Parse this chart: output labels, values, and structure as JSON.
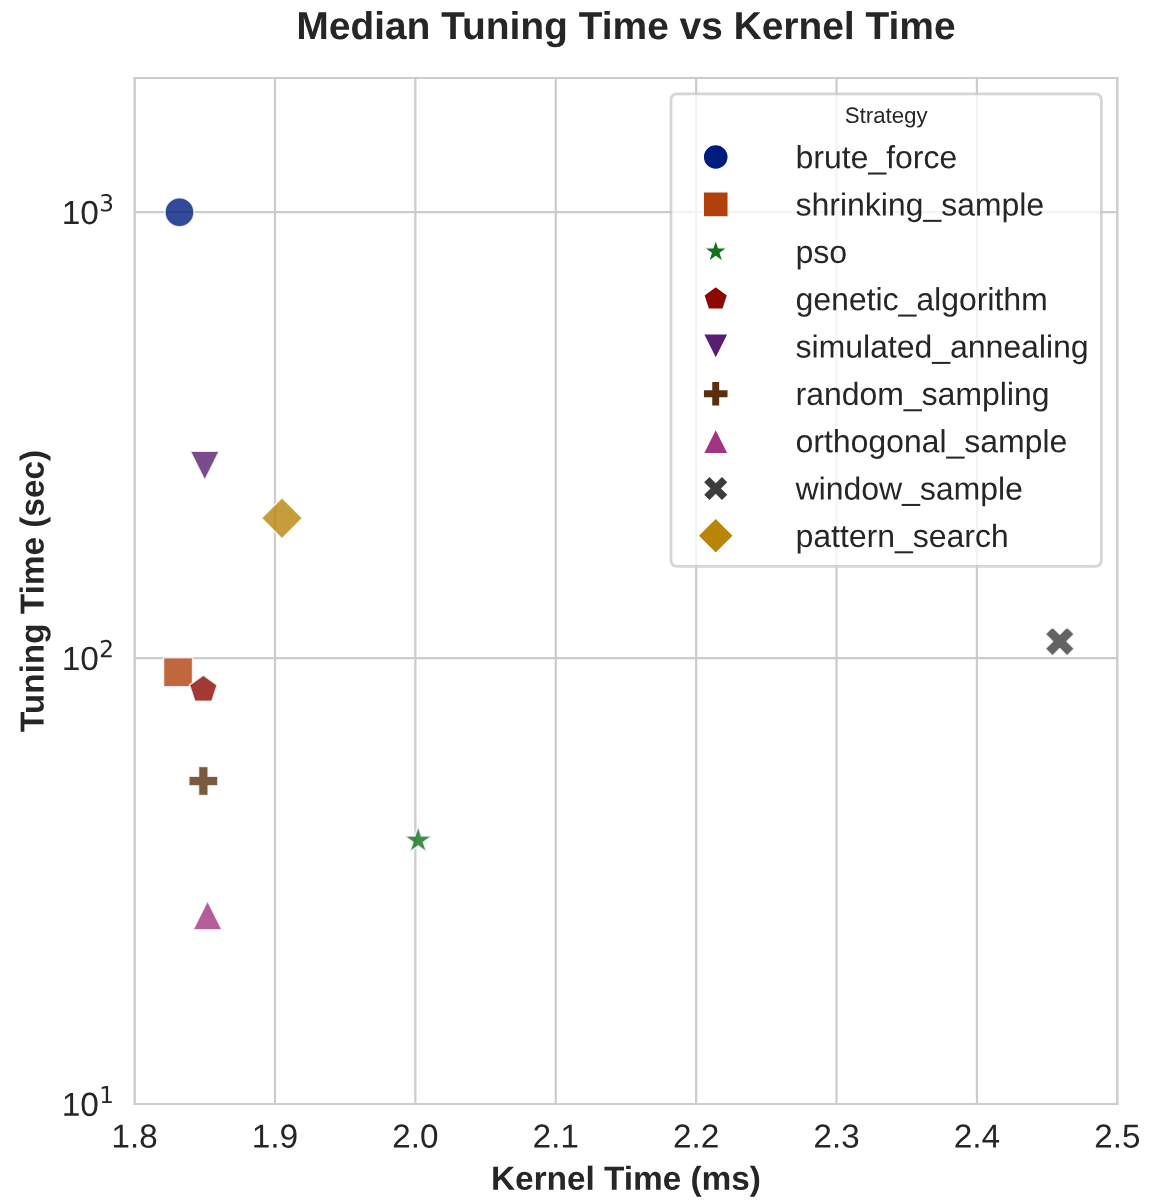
{
  "chart_data": {
    "type": "scatter",
    "title": "Median Tuning Time vs Kernel Time",
    "xlabel": "Kernel Time (ms)",
    "ylabel": "Tuning Time (sec)",
    "legend_title": "Strategy",
    "legend": "top right",
    "grid": true,
    "log": "y",
    "xlim": [
      1.8,
      2.5
    ],
    "xticks": [
      1.8,
      1.9,
      {
        "value": 2,
        "label": "2.0"
      },
      2.1,
      2.2,
      2.3,
      2.4,
      2.5
    ],
    "ylim": [
      10,
      2000
    ],
    "yticks": [
      {
        "value": 10,
        "label": "10$^{1}$"
      },
      {
        "value": 100,
        "label": "10$^{2}$"
      },
      {
        "value": 1000,
        "label": "10$^{3}$"
      }
    ],
    "series": [
      {
        "name": "brute_force",
        "color": "#001c7f",
        "marker": "circle",
        "x": [
          1.832
        ],
        "values": [
          1000
        ]
      },
      {
        "name": "shrinking_sample",
        "color": "#b1400d",
        "marker": "square",
        "x": [
          1.831
        ],
        "values": [
          93
        ]
      },
      {
        "name": "pso",
        "color": "#12711c",
        "marker": "star",
        "x": [
          2.002
        ],
        "values": [
          39
        ]
      },
      {
        "name": "genetic_algorithm",
        "color": "#8c0800",
        "x": [
          1.849
        ],
        "values": [
          85
        ]
      },
      {
        "name": "simulated_annealing",
        "color": "#591e71",
        "marker": "triangle_down",
        "x": [
          1.85
        ],
        "values": [
          270
        ]
      },
      {
        "name": "random_sampling",
        "color": "#592f0d",
        "marker": "plus",
        "x": [
          1.849
        ],
        "values": [
          53
        ]
      },
      {
        "name": "orthogonal_sample",
        "color": "#a23582",
        "marker": "triangle",
        "x": [
          1.852
        ],
        "values": [
          26.5
        ]
      },
      {
        "name": "window_sample",
        "color": "#3c3c3c",
        "marker": "x",
        "x": [
          2.459
        ],
        "values": [
          109
        ]
      },
      {
        "name": "pattern_search",
        "color": "#b8850a",
        "marker": "diamond",
        "x": [
          1.905
        ],
        "values": [
          206
        ]
      }
    ]
  }
}
